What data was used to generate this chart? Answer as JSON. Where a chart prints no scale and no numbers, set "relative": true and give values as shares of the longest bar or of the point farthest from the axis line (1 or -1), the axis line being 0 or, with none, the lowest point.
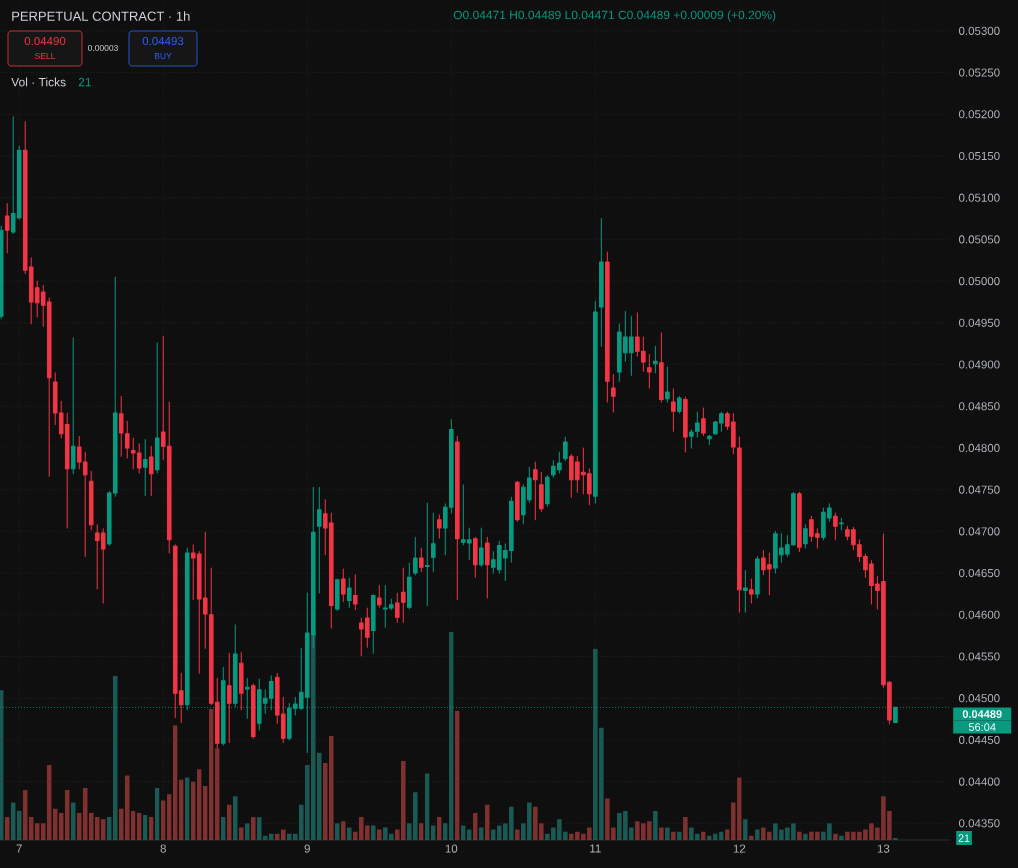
{
  "chart_data": [
    {
      "type": "candlestick",
      "title": "PERPETUAL CONTRACT · 1h",
      "annotations": [
        "O0.04471 H0.04489 L0.04471 C0.04489 +0.00009 (+0.20%)",
        "0.04490",
        "SELL",
        "0.00003",
        "0.04493",
        "BUY",
        "56:04"
      ],
      "x": [
        6.875,
        6.9167,
        6.9583,
        7,
        7.0417,
        7.0833,
        7.125,
        7.1667,
        7.2083,
        7.25,
        7.2917,
        7.3333,
        7.375,
        7.4167,
        7.4583,
        7.5,
        7.5417,
        7.5833,
        7.625,
        7.6667,
        7.7083,
        7.75,
        7.7917,
        7.8333,
        7.875,
        7.9167,
        7.9583,
        8,
        8.0417,
        8.0833,
        8.125,
        8.1667,
        8.2083,
        8.25,
        8.2917,
        8.3333,
        8.375,
        8.4167,
        8.4583,
        8.5,
        8.5417,
        8.5833,
        8.625,
        8.6667,
        8.7083,
        8.75,
        8.7917,
        8.8333,
        8.875,
        8.9167,
        8.9583,
        9,
        9.0417,
        9.0833,
        9.125,
        9.1667,
        9.2083,
        9.25,
        9.2917,
        9.3333,
        9.375,
        9.4167,
        9.4583,
        9.5,
        9.5417,
        9.5833,
        9.625,
        9.6667,
        9.7083,
        9.75,
        9.7917,
        9.8333,
        9.875,
        9.9167,
        9.9583,
        10,
        10.0417,
        10.0833,
        10.125,
        10.1667,
        10.2083,
        10.25,
        10.2917,
        10.3333,
        10.375,
        10.4167,
        10.4583,
        10.5,
        10.5417,
        10.5833,
        10.625,
        10.6667,
        10.7083,
        10.75,
        10.7917,
        10.8333,
        10.875,
        10.9167,
        10.9583,
        11,
        11.0417,
        11.0833,
        11.125,
        11.1667,
        11.2083,
        11.25,
        11.2917,
        11.3333,
        11.375,
        11.4167,
        11.4583,
        11.5,
        11.5417,
        11.5833,
        11.625,
        11.6667,
        11.7083,
        11.75,
        11.7917,
        11.8333,
        11.875,
        11.9167,
        11.9583,
        12,
        12.0417,
        12.0833,
        12.125,
        12.1667,
        12.2083,
        12.25,
        12.2917,
        12.3333,
        12.375,
        12.4167,
        12.4583,
        12.5,
        12.5417,
        12.5833,
        12.625,
        12.6667,
        12.7083,
        12.75,
        12.7917,
        12.8333,
        12.875,
        12.9167,
        12.9583,
        13,
        13.0417,
        13.0833
      ],
      "ohlc": [
        [
          0.04958,
          0.05066,
          0.04955,
          0.05061
        ],
        [
          0.05078,
          0.05093,
          0.05034,
          0.05061
        ],
        [
          0.05059,
          0.05197,
          0.05057,
          0.05081
        ],
        [
          0.05076,
          0.05162,
          0.05074,
          0.05157
        ],
        [
          0.05157,
          0.05191,
          0.05009,
          0.05013
        ],
        [
          0.05017,
          0.05028,
          0.04949,
          0.04975
        ],
        [
          0.04992,
          0.05,
          0.04957,
          0.04974
        ],
        [
          0.04987,
          0.04995,
          0.04946,
          0.04971
        ],
        [
          0.04975,
          0.0498,
          0.04766,
          0.04884
        ],
        [
          0.04879,
          0.0489,
          0.04828,
          0.04842
        ],
        [
          0.04842,
          0.04856,
          0.04812,
          0.04817
        ],
        [
          0.04828,
          0.04842,
          0.04704,
          0.04775
        ],
        [
          0.04775,
          0.04932,
          0.04769,
          0.04802
        ],
        [
          0.04801,
          0.04814,
          0.04775,
          0.04783
        ],
        [
          0.04783,
          0.04795,
          0.0467,
          0.04768
        ],
        [
          0.0476,
          0.04772,
          0.04702,
          0.04708
        ],
        [
          0.04698,
          0.04708,
          0.04631,
          0.04689
        ],
        [
          0.04698,
          0.04703,
          0.04614,
          0.04679
        ],
        [
          0.04685,
          0.04748,
          0.04683,
          0.04746
        ],
        [
          0.04746,
          0.05005,
          0.04742,
          0.04842
        ],
        [
          0.04841,
          0.04862,
          0.0479,
          0.04818
        ],
        [
          0.04817,
          0.04832,
          0.04788,
          0.048
        ],
        [
          0.04797,
          0.04812,
          0.04775,
          0.04794
        ],
        [
          0.04794,
          0.04805,
          0.0477,
          0.04776
        ],
        [
          0.04777,
          0.0481,
          0.04743,
          0.04786
        ],
        [
          0.04789,
          0.04802,
          0.04743,
          0.04769
        ],
        [
          0.04774,
          0.04926,
          0.0477,
          0.04812
        ],
        [
          0.04819,
          0.04934,
          0.04786,
          0.04802
        ],
        [
          0.04802,
          0.04855,
          0.04674,
          0.0469
        ],
        [
          0.04682,
          0.04684,
          0.04477,
          0.04506
        ],
        [
          0.04509,
          0.0453,
          0.04471,
          0.04492
        ],
        [
          0.04492,
          0.0468,
          0.04486,
          0.04674
        ],
        [
          0.04674,
          0.04684,
          0.04618,
          0.04668
        ],
        [
          0.04673,
          0.04676,
          0.0453,
          0.04619
        ],
        [
          0.0462,
          0.04699,
          0.0456,
          0.04601
        ],
        [
          0.046,
          0.04656,
          0.04492,
          0.04494
        ],
        [
          0.04495,
          0.04524,
          0.0444,
          0.04446
        ],
        [
          0.04446,
          0.04537,
          0.04444,
          0.04521
        ],
        [
          0.04515,
          0.04554,
          0.04447,
          0.04494
        ],
        [
          0.04494,
          0.04588,
          0.0449,
          0.04553
        ],
        [
          0.04542,
          0.04555,
          0.04486,
          0.04506
        ],
        [
          0.04511,
          0.04524,
          0.04476,
          0.04513
        ],
        [
          0.04515,
          0.04517,
          0.04452,
          0.04454
        ],
        [
          0.0447,
          0.04523,
          0.04462,
          0.0451
        ],
        [
          0.04494,
          0.0451,
          0.04482,
          0.045
        ],
        [
          0.045,
          0.04527,
          0.04486,
          0.0452
        ],
        [
          0.04525,
          0.0453,
          0.0447,
          0.0448
        ],
        [
          0.04481,
          0.04501,
          0.04447,
          0.04452
        ],
        [
          0.04452,
          0.04494,
          0.0445,
          0.04488
        ],
        [
          0.04488,
          0.04501,
          0.0448,
          0.04493
        ],
        [
          0.04488,
          0.0456,
          0.04486,
          0.04507
        ],
        [
          0.04501,
          0.04626,
          0.04435,
          0.04578
        ],
        [
          0.04576,
          0.04753,
          0.04561,
          0.04699
        ],
        [
          0.04706,
          0.04753,
          0.04626,
          0.04726
        ],
        [
          0.04721,
          0.04738,
          0.04672,
          0.04704
        ],
        [
          0.0471,
          0.04722,
          0.04584,
          0.04611
        ],
        [
          0.04607,
          0.04643,
          0.04605,
          0.04642
        ],
        [
          0.04643,
          0.04655,
          0.04616,
          0.04625
        ],
        [
          0.04617,
          0.04644,
          0.04609,
          0.04632
        ],
        [
          0.04623,
          0.04648,
          0.04606,
          0.04613
        ],
        [
          0.0459,
          0.04596,
          0.04551,
          0.04583
        ],
        [
          0.04596,
          0.04608,
          0.04561,
          0.04573
        ],
        [
          0.04581,
          0.04624,
          0.04554,
          0.04623
        ],
        [
          0.0462,
          0.04635,
          0.04609,
          0.04612
        ],
        [
          0.04607,
          0.04635,
          0.04585,
          0.04608
        ],
        [
          0.04608,
          0.04619,
          0.04606,
          0.04612
        ],
        [
          0.04614,
          0.04626,
          0.04591,
          0.04597
        ],
        [
          0.04627,
          0.04656,
          0.04591,
          0.04615
        ],
        [
          0.04609,
          0.04662,
          0.04607,
          0.04645
        ],
        [
          0.0465,
          0.04693,
          0.04648,
          0.04668
        ],
        [
          0.04668,
          0.0468,
          0.04652,
          0.04657
        ],
        [
          0.04658,
          0.04734,
          0.04611,
          0.04659
        ],
        [
          0.04669,
          0.04722,
          0.04652,
          0.04685
        ],
        [
          0.04714,
          0.0472,
          0.04692,
          0.04704
        ],
        [
          0.04704,
          0.04733,
          0.04672,
          0.04729
        ],
        [
          0.04729,
          0.04834,
          0.04722,
          0.04822
        ],
        [
          0.04807,
          0.04814,
          0.04618,
          0.04691
        ],
        [
          0.04687,
          0.04756,
          0.04684,
          0.0469
        ],
        [
          0.04686,
          0.04704,
          0.04666,
          0.0469
        ],
        [
          0.04691,
          0.04693,
          0.04645,
          0.0466
        ],
        [
          0.0466,
          0.04704,
          0.04658,
          0.0468
        ],
        [
          0.04686,
          0.04693,
          0.0462,
          0.0466
        ],
        [
          0.04657,
          0.04676,
          0.0465,
          0.04666
        ],
        [
          0.04654,
          0.04688,
          0.0465,
          0.04683
        ],
        [
          0.04668,
          0.04685,
          0.04641,
          0.04677
        ],
        [
          0.04677,
          0.04741,
          0.04663,
          0.04736
        ],
        [
          0.04759,
          0.0476,
          0.04712,
          0.04714
        ],
        [
          0.0472,
          0.04756,
          0.04709,
          0.04753
        ],
        [
          0.04738,
          0.04777,
          0.04735,
          0.04764
        ],
        [
          0.04774,
          0.04783,
          0.04714,
          0.04762
        ],
        [
          0.04756,
          0.04771,
          0.04724,
          0.04727
        ],
        [
          0.04733,
          0.04767,
          0.0473,
          0.04765
        ],
        [
          0.04768,
          0.04785,
          0.04765,
          0.04778
        ],
        [
          0.04774,
          0.04795,
          0.0477,
          0.04782
        ],
        [
          0.04787,
          0.04813,
          0.04785,
          0.04807
        ],
        [
          0.0479,
          0.04792,
          0.04741,
          0.04762
        ],
        [
          0.04783,
          0.0479,
          0.04747,
          0.04762
        ],
        [
          0.04771,
          0.048,
          0.04745,
          0.04768
        ],
        [
          0.04769,
          0.04775,
          0.04732,
          0.04745
        ],
        [
          0.04742,
          0.04976,
          0.04734,
          0.04963
        ],
        [
          0.04969,
          0.05075,
          0.04922,
          0.05023
        ],
        [
          0.05023,
          0.05035,
          0.04855,
          0.0488
        ],
        [
          0.04872,
          0.04888,
          0.04843,
          0.04862
        ],
        [
          0.04891,
          0.04949,
          0.0488,
          0.04939
        ],
        [
          0.04914,
          0.04964,
          0.04904,
          0.04933
        ],
        [
          0.04914,
          0.04958,
          0.04887,
          0.04933
        ],
        [
          0.04933,
          0.04962,
          0.0491,
          0.04916
        ],
        [
          0.04916,
          0.04933,
          0.04892,
          0.04903
        ],
        [
          0.04896,
          0.04912,
          0.04872,
          0.04891
        ],
        [
          0.04901,
          0.04922,
          0.0489,
          0.04904
        ],
        [
          0.04902,
          0.04938,
          0.04855,
          0.04858
        ],
        [
          0.04859,
          0.04897,
          0.04855,
          0.04867
        ],
        [
          0.04855,
          0.04871,
          0.0482,
          0.04844
        ],
        [
          0.04844,
          0.04862,
          0.04842,
          0.0486
        ],
        [
          0.04858,
          0.04861,
          0.04795,
          0.04813
        ],
        [
          0.04814,
          0.04822,
          0.048,
          0.04819
        ],
        [
          0.0482,
          0.04843,
          0.04813,
          0.0483
        ],
        [
          0.04835,
          0.04848,
          0.04815,
          0.04818
        ],
        [
          0.04811,
          0.04815,
          0.04804,
          0.04814
        ],
        [
          0.04817,
          0.04832,
          0.04816,
          0.04831
        ],
        [
          0.0483,
          0.04843,
          0.0482,
          0.04841
        ],
        [
          0.04841,
          0.04843,
          0.04822,
          0.04826
        ],
        [
          0.04831,
          0.04841,
          0.04793,
          0.04801
        ],
        [
          0.048,
          0.04813,
          0.04603,
          0.0463
        ],
        [
          0.04629,
          0.04653,
          0.04603,
          0.04632
        ],
        [
          0.0463,
          0.04643,
          0.04614,
          0.04625
        ],
        [
          0.04625,
          0.0467,
          0.0462,
          0.04667
        ],
        [
          0.04668,
          0.04677,
          0.04648,
          0.04654
        ],
        [
          0.0466,
          0.04674,
          0.04624,
          0.04655
        ],
        [
          0.04656,
          0.047,
          0.0465,
          0.04697
        ],
        [
          0.04672,
          0.04697,
          0.04663,
          0.0468
        ],
        [
          0.04673,
          0.04695,
          0.0467,
          0.04684
        ],
        [
          0.04684,
          0.04747,
          0.04683,
          0.04745
        ],
        [
          0.04745,
          0.04747,
          0.04676,
          0.04681
        ],
        [
          0.04685,
          0.04708,
          0.0468,
          0.04703
        ],
        [
          0.04714,
          0.04718,
          0.04688,
          0.04694
        ],
        [
          0.04697,
          0.04703,
          0.0468,
          0.04693
        ],
        [
          0.04693,
          0.04728,
          0.0469,
          0.04723
        ],
        [
          0.04716,
          0.04733,
          0.04712,
          0.04728
        ],
        [
          0.04718,
          0.04722,
          0.0469,
          0.04706
        ],
        [
          0.04709,
          0.04716,
          0.04702,
          0.0471
        ],
        [
          0.04702,
          0.04706,
          0.0469,
          0.04694
        ],
        [
          0.04702,
          0.04705,
          0.04678,
          0.04684
        ],
        [
          0.04684,
          0.0469,
          0.04664,
          0.0467
        ],
        [
          0.0467,
          0.04673,
          0.04645,
          0.04654
        ],
        [
          0.04661,
          0.04665,
          0.04613,
          0.04635
        ],
        [
          0.04637,
          0.04646,
          0.04607,
          0.04629
        ],
        [
          0.0464,
          0.04697,
          0.04513,
          0.04516
        ],
        [
          0.04519,
          0.0452,
          0.04469,
          0.04474
        ],
        [
          0.04471,
          0.04489,
          0.04471,
          0.04489
        ]
      ],
      "colors": [
        "#089981",
        "#f23645",
        "#089981",
        "#089981",
        "#f23645",
        "#f23645",
        "#f23645",
        "#f23645",
        "#f23645",
        "#f23645",
        "#f23645",
        "#f23645",
        "#089981",
        "#f23645",
        "#f23645",
        "#f23645",
        "#f23645",
        "#f23645",
        "#089981",
        "#089981",
        "#f23645",
        "#f23645",
        "#f23645",
        "#f23645",
        "#089981",
        "#f23645",
        "#089981",
        "#f23645",
        "#f23645",
        "#f23645",
        "#f23645",
        "#089981",
        "#f23645",
        "#f23645",
        "#f23645",
        "#f23645",
        "#f23645",
        "#089981",
        "#f23645",
        "#089981",
        "#f23645",
        "#089981",
        "#f23645",
        "#089981",
        "#089981",
        "#089981",
        "#f23645",
        "#f23645",
        "#089981",
        "#089981",
        "#089981",
        "#089981",
        "#089981",
        "#089981",
        "#f23645",
        "#f23645",
        "#089981",
        "#f23645",
        "#089981",
        "#f23645",
        "#f23645",
        "#f23645",
        "#089981",
        "#f23645",
        "#089981",
        "#089981",
        "#f23645",
        "#f23645",
        "#089981",
        "#089981",
        "#f23645",
        "#089981",
        "#089981",
        "#f23645",
        "#089981",
        "#089981",
        "#f23645",
        "#089981",
        "#089981",
        "#f23645",
        "#089981",
        "#f23645",
        "#089981",
        "#089981",
        "#089981",
        "#089981",
        "#f23645",
        "#089981",
        "#089981",
        "#f23645",
        "#f23645",
        "#089981",
        "#089981",
        "#089981",
        "#089981",
        "#f23645",
        "#f23645",
        "#f23645",
        "#f23645",
        "#089981",
        "#089981",
        "#f23645",
        "#f23645",
        "#089981",
        "#089981",
        "#089981",
        "#f23645",
        "#f23645",
        "#f23645",
        "#089981",
        "#f23645",
        "#089981",
        "#f23645",
        "#089981",
        "#f23645",
        "#089981",
        "#089981",
        "#f23645",
        "#089981",
        "#089981",
        "#089981",
        "#f23645",
        "#f23645",
        "#f23645",
        "#089981",
        "#f23645",
        "#089981",
        "#f23645",
        "#f23645",
        "#089981",
        "#089981",
        "#089981",
        "#089981",
        "#f23645",
        "#089981",
        "#f23645",
        "#f23645",
        "#089981",
        "#089981",
        "#f23645",
        "#089981",
        "#f23645",
        "#f23645",
        "#f23645",
        "#f23645",
        "#f23645",
        "#f23645",
        "#f23645",
        "#f23645",
        "#089981"
      ],
      "xlim": [
        6.8667,
        13.4625
      ],
      "ylim": [
        0.0433,
        0.05337
      ],
      "xticks": [
        7,
        8,
        9,
        10,
        11,
        12,
        13
      ],
      "yticks": [
        {
          "value": 0.0435,
          "label": "0.04350"
        },
        {
          "value": 0.044,
          "label": "0.04400"
        },
        {
          "value": 0.0445,
          "label": "0.04450"
        },
        {
          "value": 0.045,
          "label": "0.04500"
        },
        {
          "value": 0.0455,
          "label": "0.04550"
        },
        {
          "value": 0.046,
          "label": "0.04600"
        },
        {
          "value": 0.0465,
          "label": "0.04650"
        },
        {
          "value": 0.047,
          "label": "0.04700"
        },
        {
          "value": 0.0475,
          "label": "0.04750"
        },
        {
          "value": 0.048,
          "label": "0.04800"
        },
        {
          "value": 0.0485,
          "label": "0.04850"
        },
        {
          "value": 0.049,
          "label": "0.04900"
        },
        {
          "value": 0.0495,
          "label": "0.04950"
        },
        {
          "value": 0.05,
          "label": "0.05000"
        },
        {
          "value": 0.0505,
          "label": "0.05050"
        },
        {
          "value": 0.051,
          "label": "0.05100"
        },
        {
          "value": 0.0515,
          "label": "0.05150"
        },
        {
          "value": 0.052,
          "label": "0.05200"
        },
        {
          "value": 0.0525,
          "label": "0.05250"
        },
        {
          "value": 0.053,
          "label": "0.05300"
        }
      ],
      "grid": true,
      "ref_lines": [
        {
          "axis": "y",
          "value": 0.04489,
          "label": "0.04489",
          "color": "#089981",
          "line_style": "dotted"
        }
      ]
    },
    {
      "type": "bar",
      "title": "Vol · Ticks",
      "annotations": [
        "21",
        "21"
      ],
      "x": [
        6.875,
        6.9167,
        6.9583,
        7,
        7.0417,
        7.0833,
        7.125,
        7.1667,
        7.2083,
        7.25,
        7.2917,
        7.3333,
        7.375,
        7.4167,
        7.4583,
        7.5,
        7.5417,
        7.5833,
        7.625,
        7.6667,
        7.7083,
        7.75,
        7.7917,
        7.8333,
        7.875,
        7.9167,
        7.9583,
        8,
        8.0417,
        8.0833,
        8.125,
        8.1667,
        8.2083,
        8.25,
        8.2917,
        8.3333,
        8.375,
        8.4167,
        8.4583,
        8.5,
        8.5417,
        8.5833,
        8.625,
        8.6667,
        8.7083,
        8.75,
        8.7917,
        8.8333,
        8.875,
        8.9167,
        8.9583,
        9,
        9.0417,
        9.0833,
        9.125,
        9.1667,
        9.2083,
        9.25,
        9.2917,
        9.3333,
        9.375,
        9.4167,
        9.4583,
        9.5,
        9.5417,
        9.5833,
        9.625,
        9.6667,
        9.7083,
        9.75,
        9.7917,
        9.8333,
        9.875,
        9.9167,
        9.9583,
        10,
        10.0417,
        10.0833,
        10.125,
        10.1667,
        10.2083,
        10.25,
        10.2917,
        10.3333,
        10.375,
        10.4167,
        10.4583,
        10.5,
        10.5417,
        10.5833,
        10.625,
        10.6667,
        10.7083,
        10.75,
        10.7917,
        10.8333,
        10.875,
        10.9167,
        10.9583,
        11,
        11.0417,
        11.0833,
        11.125,
        11.1667,
        11.2083,
        11.25,
        11.2917,
        11.3333,
        11.375,
        11.4167,
        11.4583,
        11.5,
        11.5417,
        11.5833,
        11.625,
        11.6667,
        11.7083,
        11.75,
        11.7917,
        11.8333,
        11.875,
        11.9167,
        11.9583,
        12,
        12.0417,
        12.0833,
        12.125,
        12.1667,
        12.2083,
        12.25,
        12.2917,
        12.3333,
        12.375,
        12.4167,
        12.4583,
        12.5,
        12.5417,
        12.5833,
        12.625,
        12.6667,
        12.7083,
        12.75,
        12.7917,
        12.8333,
        12.875,
        12.9167,
        12.9583,
        13,
        13.0417,
        13.0833
      ],
      "values": [
        0.72,
        0.11,
        0.18,
        0.14,
        0.24,
        0.11,
        0.08,
        0.08,
        0.36,
        0.15,
        0.13,
        0.24,
        0.18,
        0.13,
        0.25,
        0.13,
        0.11,
        0.1,
        0.11,
        0.79,
        0.15,
        0.31,
        0.14,
        0.13,
        0.12,
        0.11,
        0.25,
        0.19,
        0.22,
        0.55,
        0.29,
        0.3,
        0.28,
        0.34,
        0.26,
        0.63,
        0.44,
        0.11,
        0.17,
        0.21,
        0.06,
        0.08,
        0.11,
        0.11,
        0.02,
        0.03,
        0.03,
        0.05,
        0.03,
        0.03,
        0.17,
        0.36,
        1.0,
        0.42,
        0.37,
        0.5,
        0.08,
        0.09,
        0.06,
        0.04,
        0.11,
        0.07,
        0.07,
        0.05,
        0.06,
        0.03,
        0.05,
        0.38,
        0.08,
        0.23,
        0.08,
        0.32,
        0.07,
        0.11,
        0.08,
        1.0,
        0.62,
        0.07,
        0.05,
        0.13,
        0.06,
        0.17,
        0.05,
        0.07,
        0.08,
        0.16,
        0.05,
        0.08,
        0.18,
        0.16,
        0.08,
        0.03,
        0.06,
        0.1,
        0.04,
        0.03,
        0.04,
        0.03,
        0.06,
        0.92,
        0.54,
        0.2,
        0.06,
        0.13,
        0.14,
        0.06,
        0.09,
        0.08,
        0.09,
        0.14,
        0.06,
        0.06,
        0.04,
        0.04,
        0.11,
        0.06,
        0.03,
        0.04,
        0.02,
        0.03,
        0.04,
        0.05,
        0.18,
        0.3,
        0.1,
        0.02,
        0.05,
        0.06,
        0.04,
        0.08,
        0.05,
        0.06,
        0.08,
        0.04,
        0.03,
        0.04,
        0.04,
        0.04,
        0.08,
        0.03,
        0.02,
        0.04,
        0.04,
        0.04,
        0.05,
        0.08,
        0.06,
        0.21,
        0.14,
        0.01
      ],
      "colors": [
        "#1a5a54",
        "#7f312f",
        "#1a5a54",
        "#1a5a54",
        "#7f312f",
        "#7f312f",
        "#7f312f",
        "#7f312f",
        "#7f312f",
        "#7f312f",
        "#7f312f",
        "#7f312f",
        "#1a5a54",
        "#7f312f",
        "#7f312f",
        "#7f312f",
        "#7f312f",
        "#7f312f",
        "#1a5a54",
        "#1a5a54",
        "#7f312f",
        "#7f312f",
        "#7f312f",
        "#7f312f",
        "#1a5a54",
        "#7f312f",
        "#1a5a54",
        "#7f312f",
        "#7f312f",
        "#7f312f",
        "#7f312f",
        "#1a5a54",
        "#7f312f",
        "#7f312f",
        "#7f312f",
        "#7f312f",
        "#7f312f",
        "#1a5a54",
        "#7f312f",
        "#1a5a54",
        "#7f312f",
        "#1a5a54",
        "#7f312f",
        "#1a5a54",
        "#1a5a54",
        "#1a5a54",
        "#7f312f",
        "#7f312f",
        "#1a5a54",
        "#1a5a54",
        "#1a5a54",
        "#1a5a54",
        "#1a5a54",
        "#1a5a54",
        "#7f312f",
        "#7f312f",
        "#1a5a54",
        "#7f312f",
        "#1a5a54",
        "#7f312f",
        "#7f312f",
        "#7f312f",
        "#1a5a54",
        "#7f312f",
        "#1a5a54",
        "#1a5a54",
        "#7f312f",
        "#7f312f",
        "#1a5a54",
        "#1a5a54",
        "#7f312f",
        "#1a5a54",
        "#1a5a54",
        "#7f312f",
        "#1a5a54",
        "#1a5a54",
        "#7f312f",
        "#1a5a54",
        "#1a5a54",
        "#7f312f",
        "#1a5a54",
        "#7f312f",
        "#1a5a54",
        "#1a5a54",
        "#1a5a54",
        "#1a5a54",
        "#7f312f",
        "#1a5a54",
        "#1a5a54",
        "#7f312f",
        "#7f312f",
        "#1a5a54",
        "#1a5a54",
        "#1a5a54",
        "#1a5a54",
        "#7f312f",
        "#7f312f",
        "#7f312f",
        "#7f312f",
        "#1a5a54",
        "#1a5a54",
        "#7f312f",
        "#7f312f",
        "#1a5a54",
        "#1a5a54",
        "#1a5a54",
        "#7f312f",
        "#7f312f",
        "#7f312f",
        "#1a5a54",
        "#7f312f",
        "#1a5a54",
        "#7f312f",
        "#1a5a54",
        "#7f312f",
        "#1a5a54",
        "#1a5a54",
        "#7f312f",
        "#1a5a54",
        "#1a5a54",
        "#1a5a54",
        "#7f312f",
        "#7f312f",
        "#7f312f",
        "#1a5a54",
        "#7f312f",
        "#1a5a54",
        "#7f312f",
        "#7f312f",
        "#1a5a54",
        "#1a5a54",
        "#1a5a54",
        "#1a5a54",
        "#7f312f",
        "#1a5a54",
        "#7f312f",
        "#7f312f",
        "#1a5a54",
        "#1a5a54",
        "#7f312f",
        "#1a5a54",
        "#7f312f",
        "#7f312f",
        "#7f312f",
        "#7f312f",
        "#7f312f",
        "#7f312f",
        "#7f312f",
        "#7f312f",
        "#1a5a54"
      ],
      "relative": true,
      "xlim": [
        6.8667,
        13.4625
      ],
      "xticks": [
        7,
        8,
        9,
        10,
        11,
        12,
        13
      ],
      "tick_labels": false
    }
  ]
}
